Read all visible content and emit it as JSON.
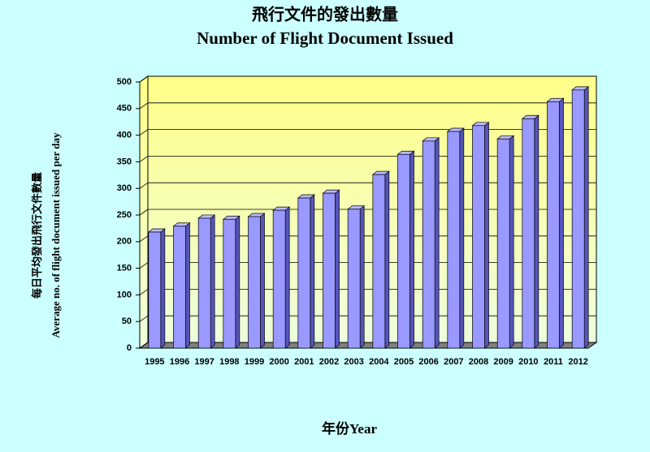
{
  "chart_data": {
    "type": "bar",
    "title": "飛行文件的發出數量",
    "subtitle": "Number of Flight Document Issued",
    "ylabel": [
      "每日平均發出飛行文件數量",
      "Average no. of flight document issued per day"
    ],
    "xlabel": "年份Year",
    "categories": [
      "1995",
      "1996",
      "1997",
      "1998",
      "1999",
      "2000",
      "2001",
      "2002",
      "2003",
      "2004",
      "2005",
      "2006",
      "2007",
      "2008",
      "2009",
      "2010",
      "2011",
      "2012"
    ],
    "values": [
      218,
      229,
      244,
      242,
      247,
      259,
      282,
      291,
      261,
      326,
      364,
      389,
      407,
      418,
      393,
      431,
      463,
      485
    ],
    "color": "#9999ff",
    "ylim": [
      0,
      500
    ],
    "yticks": [
      0,
      50,
      100,
      150,
      200,
      250,
      300,
      350,
      400,
      450,
      500
    ],
    "grid": true
  }
}
